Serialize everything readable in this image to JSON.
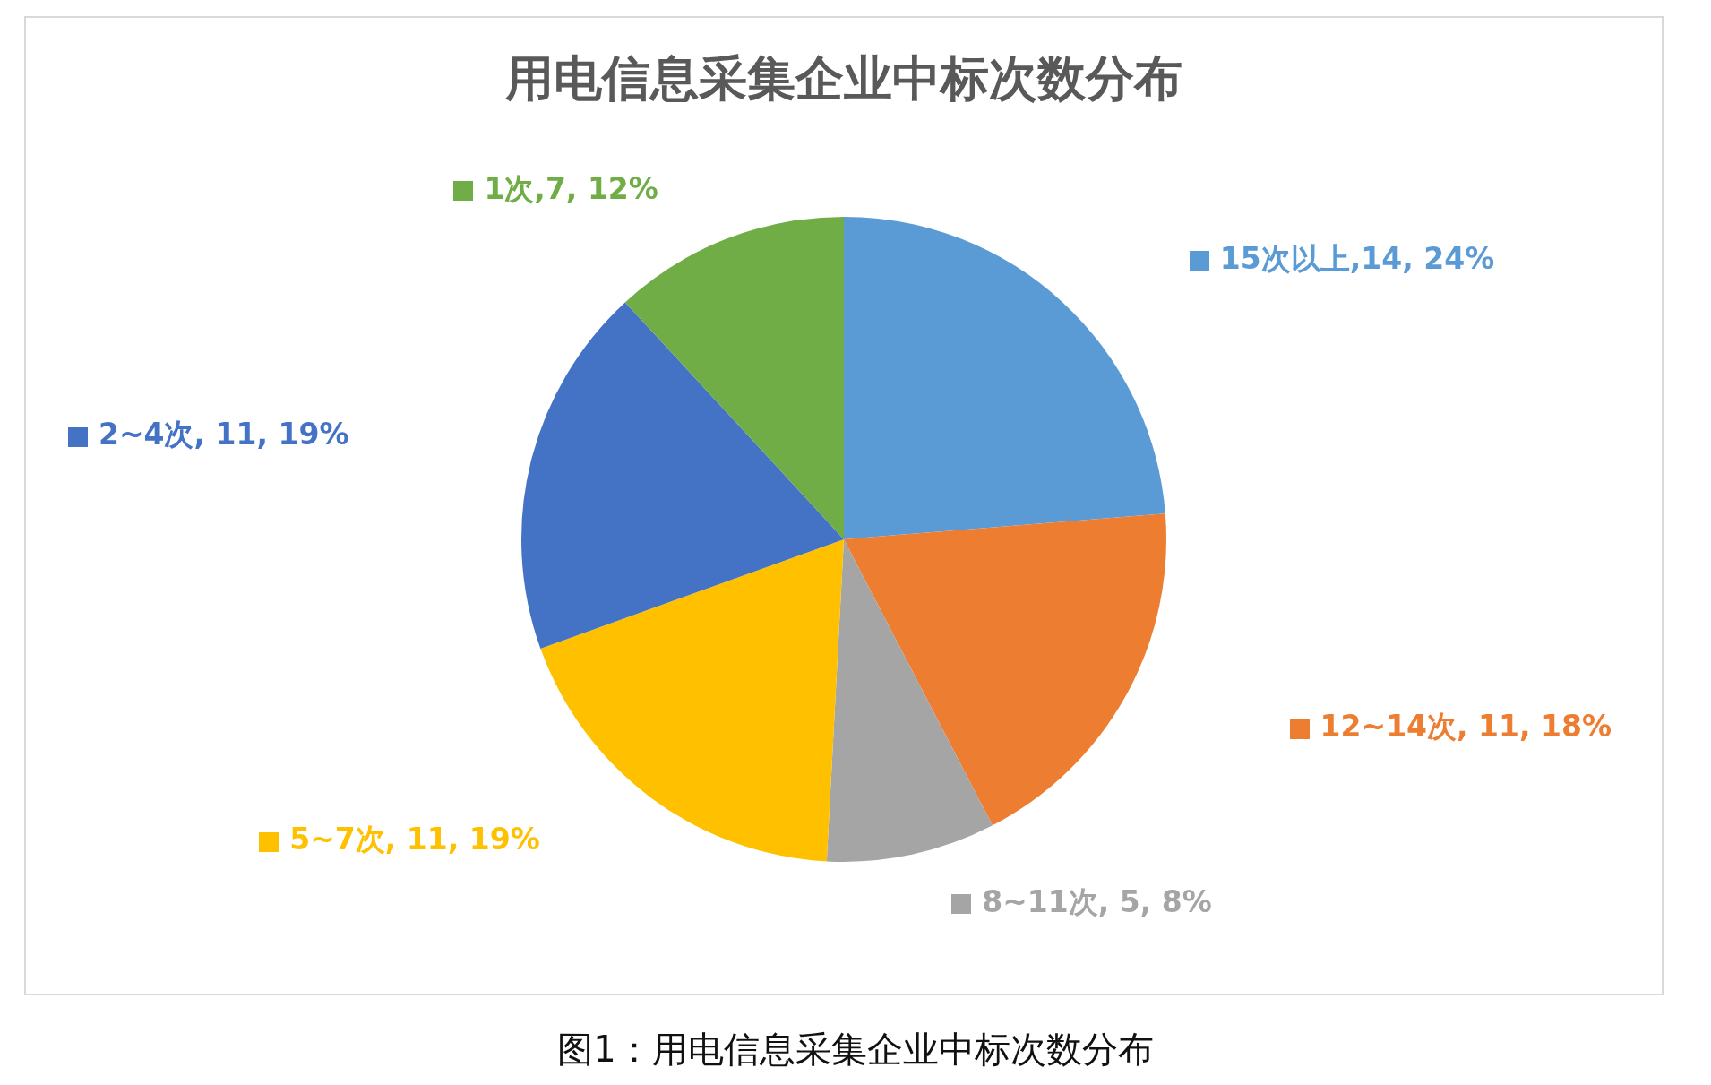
{
  "chart_data": {
    "type": "pie",
    "title": "用电信息采集企业中标次数分布",
    "categories": [
      "15次以上",
      "12~14次",
      "8~11次",
      "5~7次",
      "2~4次",
      "1次"
    ],
    "values": [
      14,
      11,
      5,
      11,
      11,
      7
    ],
    "colors": [
      "#5b9bd5",
      "#ed7d31",
      "#a5a5a5",
      "#ffc000",
      "#4472c4",
      "#70ad47"
    ],
    "value_labels": [
      ",14, 24%",
      ", 11, 18%",
      ", 5, 8%",
      ", 11, 19%",
      ", 11, 19%",
      ",7, 12%"
    ],
    "legend": true,
    "annotations": [
      "图1：用电信息采集企业中标次数分布"
    ]
  }
}
